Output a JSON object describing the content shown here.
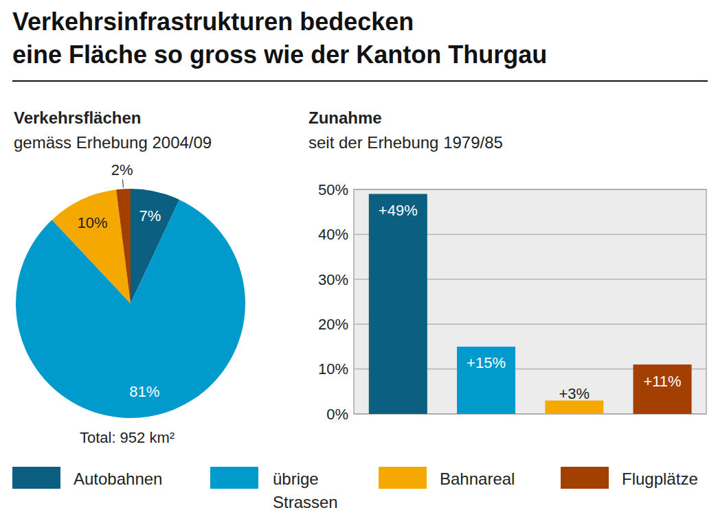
{
  "title": [
    "Verkehrsinfrastrukturen bedecken",
    "eine Fläche so gross wie der Kanton Thurgau"
  ],
  "chart_data": [
    {
      "type": "pie",
      "title": "Verkehrsflächen",
      "subtitle": "gemäss Erhebung 2004/09",
      "categories": [
        "Autobahnen",
        "übrige Strassen",
        "Bahnareal",
        "Flugplätze"
      ],
      "values": [
        7,
        81,
        10,
        2
      ],
      "value_labels": [
        "7%",
        "81%",
        "10%",
        "2%"
      ],
      "colors": [
        "#0b5f80",
        "#009bcc",
        "#f5a800",
        "#a33f00"
      ],
      "data_labels": true,
      "legend": "bottom",
      "annotations": [
        "Total: 952 km²"
      ]
    },
    {
      "type": "bar",
      "title": "Zunahme",
      "subtitle": "seit der Erhebung 1979/85",
      "categories": [
        "Autobahnen",
        "übrige Strassen",
        "Bahnareal",
        "Flugplätze"
      ],
      "values": [
        49,
        15,
        3,
        11
      ],
      "value_labels": [
        "+49%",
        "+15%",
        "+3%",
        "+11%"
      ],
      "colors": [
        "#0b5f80",
        "#009bcc",
        "#f5a800",
        "#a33f00"
      ],
      "data_labels": true,
      "ylim": [
        0,
        50
      ],
      "yticks": [
        {
          "value": 0,
          "label": "0%"
        },
        {
          "value": 10,
          "label": "10%"
        },
        {
          "value": 20,
          "label": "20%"
        },
        {
          "value": 30,
          "label": "30%"
        },
        {
          "value": 40,
          "label": "40%"
        },
        {
          "value": 50,
          "label": "50%"
        }
      ],
      "grid": true,
      "tick_labels": "y"
    }
  ]
}
